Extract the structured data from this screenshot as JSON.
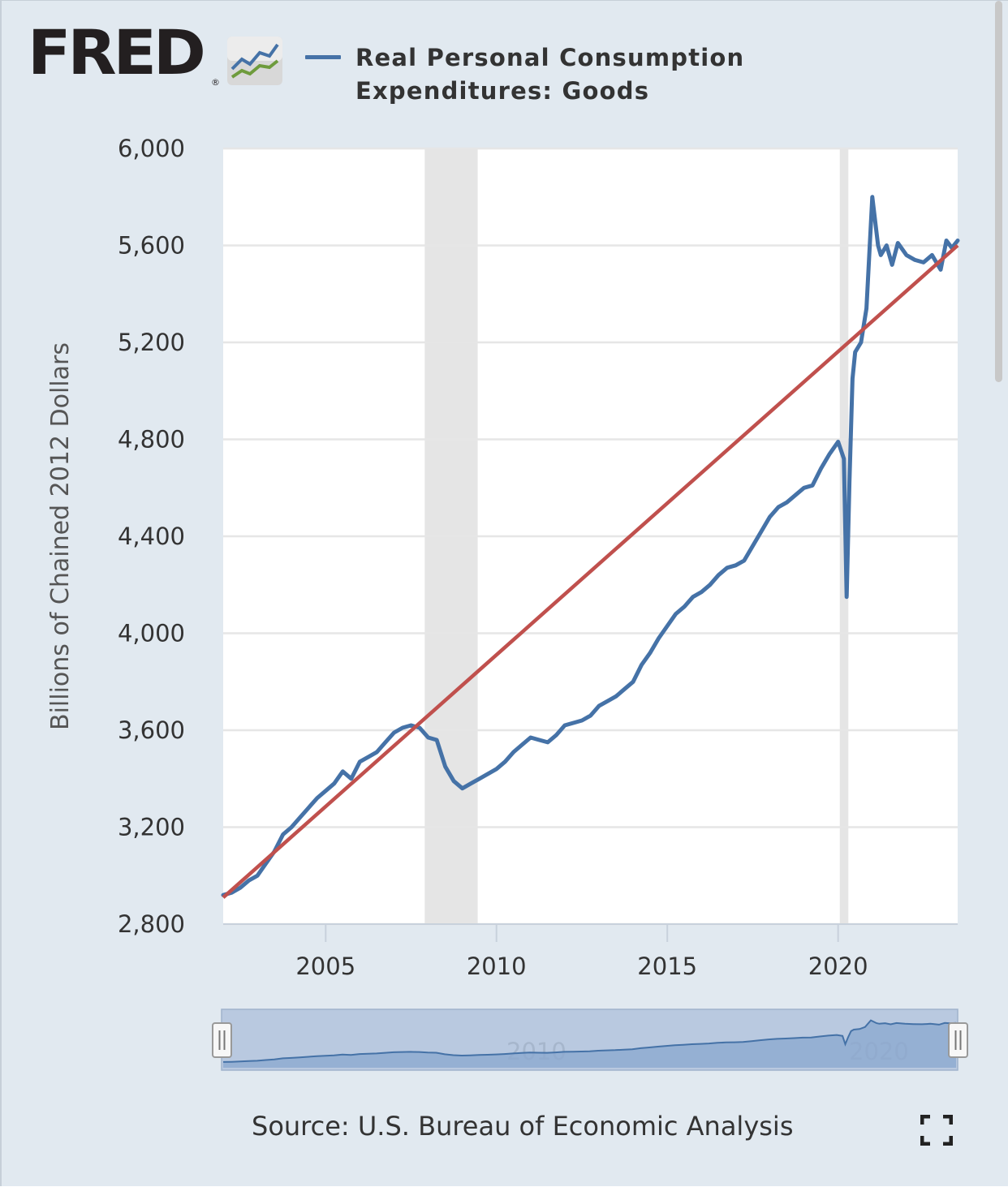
{
  "logo": {
    "text": "FRED",
    "registered": "®",
    "icon": "line-chart-icon"
  },
  "legend": {
    "line1": "Real Personal Consumption",
    "line2": "Expenditures: Goods",
    "color": "#4572a7"
  },
  "source": "Source: U.S. Bureau of Economic Analysis",
  "colors": {
    "series": "#4572a7",
    "trend": "#c0504d",
    "recession": "#e5e5e5",
    "background": "#e1e9f0"
  },
  "chart_data": {
    "type": "line",
    "ylabel": "Billions of Chained 2012 Dollars",
    "ylim": [
      2800,
      6000
    ],
    "yticks": [
      "2,800",
      "3,200",
      "3,600",
      "4,000",
      "4,400",
      "4,800",
      "5,200",
      "5,600",
      "6,000"
    ],
    "xlim": [
      2002.0,
      2023.5
    ],
    "xticks": [
      "2005",
      "2010",
      "2015",
      "2020"
    ],
    "grid": true,
    "legend_position": "top",
    "recessions": [
      [
        2007.9,
        2009.45
      ],
      [
        2020.05,
        2020.3
      ]
    ],
    "series": [
      {
        "name": "Real Personal Consumption Expenditures: Goods",
        "x": [
          2002.0,
          2002.25,
          2002.5,
          2002.75,
          2003.0,
          2003.25,
          2003.5,
          2003.75,
          2004.0,
          2004.25,
          2004.5,
          2004.75,
          2005.0,
          2005.25,
          2005.5,
          2005.75,
          2006.0,
          2006.25,
          2006.5,
          2006.75,
          2007.0,
          2007.25,
          2007.5,
          2007.75,
          2008.0,
          2008.25,
          2008.5,
          2008.75,
          2009.0,
          2009.25,
          2009.5,
          2009.75,
          2010.0,
          2010.25,
          2010.5,
          2010.75,
          2011.0,
          2011.25,
          2011.5,
          2011.75,
          2012.0,
          2012.25,
          2012.5,
          2012.75,
          2013.0,
          2013.25,
          2013.5,
          2013.75,
          2014.0,
          2014.25,
          2014.5,
          2014.75,
          2015.0,
          2015.25,
          2015.5,
          2015.75,
          2016.0,
          2016.25,
          2016.5,
          2016.75,
          2017.0,
          2017.25,
          2017.5,
          2017.75,
          2018.0,
          2018.25,
          2018.5,
          2018.75,
          2019.0,
          2019.25,
          2019.5,
          2019.75,
          2020.0,
          2020.17,
          2020.25,
          2020.33,
          2020.42,
          2020.5,
          2020.67,
          2020.83,
          2021.0,
          2021.17,
          2021.25,
          2021.42,
          2021.58,
          2021.75,
          2022.0,
          2022.25,
          2022.5,
          2022.75,
          2023.0,
          2023.17,
          2023.33,
          2023.5
        ],
        "y": [
          2920,
          2930,
          2950,
          2980,
          3000,
          3050,
          3100,
          3170,
          3200,
          3240,
          3280,
          3320,
          3350,
          3380,
          3430,
          3400,
          3470,
          3490,
          3510,
          3550,
          3590,
          3610,
          3620,
          3610,
          3570,
          3560,
          3450,
          3390,
          3360,
          3380,
          3400,
          3420,
          3440,
          3470,
          3510,
          3540,
          3570,
          3560,
          3550,
          3580,
          3620,
          3630,
          3640,
          3660,
          3700,
          3720,
          3740,
          3770,
          3800,
          3870,
          3920,
          3980,
          4030,
          4080,
          4110,
          4150,
          4170,
          4200,
          4240,
          4270,
          4280,
          4300,
          4360,
          4420,
          4480,
          4520,
          4540,
          4570,
          4600,
          4610,
          4680,
          4740,
          4790,
          4720,
          4150,
          4620,
          5050,
          5160,
          5200,
          5340,
          5800,
          5600,
          5560,
          5600,
          5520,
          5610,
          5560,
          5540,
          5530,
          5560,
          5500,
          5620,
          5590,
          5620
        ]
      }
    ],
    "trend_line": {
      "x": [
        2002.0,
        2023.5
      ],
      "y": [
        2910,
        5600
      ]
    }
  }
}
